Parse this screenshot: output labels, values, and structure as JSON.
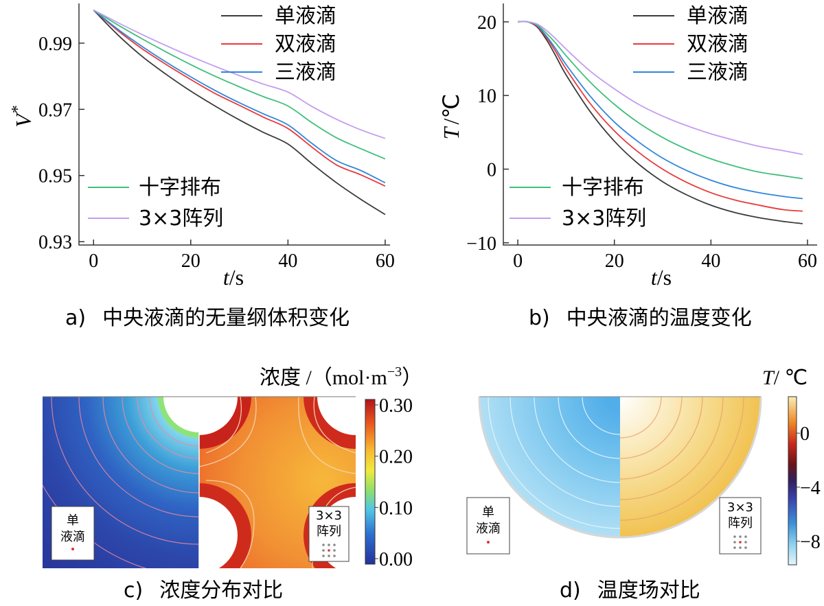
{
  "chart_data": [
    {
      "id": "a",
      "type": "line",
      "caption_label": "a)",
      "caption_text": "中央液滴的无量纲体积变化",
      "ylabel": "V*",
      "ylabel_main": "V",
      "ylabel_sup": "*",
      "xlabel_var": "t",
      "xlabel_unit": "/s",
      "xlim": [
        -3,
        61
      ],
      "ylim": [
        0.929,
        1.002
      ],
      "xticks": [
        0,
        20,
        40,
        60
      ],
      "yticks": [
        0.93,
        0.95,
        0.97,
        0.99
      ],
      "ytick_labels": [
        "0.93",
        "0.95",
        "0.97",
        "0.99"
      ],
      "x": [
        0,
        5,
        10,
        15,
        20,
        25,
        30,
        35,
        40,
        45,
        50,
        55,
        60
      ],
      "series": [
        {
          "name": "单液滴",
          "color": "#3a3a3a",
          "values": [
            1.0,
            0.9925,
            0.986,
            0.9805,
            0.9755,
            0.971,
            0.9668,
            0.963,
            0.9595,
            0.9535,
            0.9478,
            0.9428,
            0.9382
          ]
        },
        {
          "name": "双液滴",
          "color": "#e8393a",
          "values": [
            1.0,
            0.9938,
            0.9883,
            0.9835,
            0.979,
            0.9748,
            0.9712,
            0.9676,
            0.9642,
            0.9585,
            0.9532,
            0.9502,
            0.9468
          ]
        },
        {
          "name": "三液滴",
          "color": "#2f86d9",
          "values": [
            1.0,
            0.9942,
            0.989,
            0.9842,
            0.9798,
            0.9757,
            0.972,
            0.9686,
            0.9653,
            0.9596,
            0.9545,
            0.9515,
            0.9478
          ]
        },
        {
          "name": "十字排布",
          "color": "#3fbf7a",
          "values": [
            1.0,
            0.9955,
            0.9913,
            0.9873,
            0.9835,
            0.98,
            0.9768,
            0.9738,
            0.971,
            0.9659,
            0.9614,
            0.9581,
            0.955
          ]
        },
        {
          "name": "3×3阵列",
          "color": "#c39cf0",
          "values": [
            1.0,
            0.9962,
            0.9926,
            0.9892,
            0.986,
            0.983,
            0.9802,
            0.9776,
            0.9752,
            0.9708,
            0.967,
            0.9638,
            0.9612
          ]
        }
      ]
    },
    {
      "id": "b",
      "type": "line",
      "caption_label": "b)",
      "caption_text": "中央液滴的温度变化",
      "ylabel": "T /℃",
      "ylabel_main": "T",
      "ylabel_unit": "/℃",
      "xlabel_var": "t",
      "xlabel_unit": "/s",
      "xlim": [
        -3,
        62
      ],
      "ylim": [
        -10.3,
        22.5
      ],
      "xticks": [
        0,
        20,
        40,
        60
      ],
      "yticks": [
        -10,
        0,
        10,
        20
      ],
      "ytick_labels": [
        "−10",
        "0",
        "10",
        "20"
      ],
      "x": [
        0,
        2,
        4,
        6,
        8,
        10,
        15,
        20,
        25,
        30,
        35,
        40,
        45,
        50,
        55,
        59
      ],
      "series": [
        {
          "name": "单液滴",
          "color": "#3a3a3a",
          "values": [
            20,
            20,
            19.3,
            17.5,
            15.2,
            12.8,
            7.8,
            3.8,
            0.7,
            -1.7,
            -3.5,
            -4.9,
            -5.9,
            -6.6,
            -7.1,
            -7.4
          ]
        },
        {
          "name": "双液滴",
          "color": "#e8393a",
          "values": [
            20,
            20,
            19.4,
            17.8,
            15.8,
            13.6,
            8.9,
            5.2,
            2.3,
            0.0,
            -1.8,
            -3.2,
            -4.2,
            -4.9,
            -5.5,
            -5.7
          ]
        },
        {
          "name": "三液滴",
          "color": "#2f86d9",
          "values": [
            20,
            20,
            19.5,
            18.0,
            16.2,
            14.2,
            9.9,
            6.4,
            3.7,
            1.5,
            -0.2,
            -1.5,
            -2.5,
            -3.2,
            -3.7,
            -4.0
          ]
        },
        {
          "name": "十字排布",
          "color": "#3fbf7a",
          "values": [
            20,
            20,
            19.6,
            18.4,
            17.0,
            15.4,
            11.8,
            8.8,
            6.3,
            4.3,
            2.7,
            1.4,
            0.4,
            -0.4,
            -0.9,
            -1.3
          ]
        },
        {
          "name": "3×3阵列",
          "color": "#c39cf0",
          "values": [
            20,
            20,
            19.7,
            18.8,
            17.6,
            16.3,
            13.3,
            10.9,
            8.8,
            7.2,
            5.9,
            4.8,
            3.9,
            3.1,
            2.5,
            2.0
          ]
        }
      ]
    },
    {
      "id": "c",
      "type": "heatmap",
      "caption_label": "c)",
      "caption_text": "浓度分布对比",
      "colorbar_title": "浓度 /（mol·m",
      "colorbar_title_sup": "−3",
      "colorbar_title_end": "）",
      "colorbar_range": [
        0.0,
        0.3
      ],
      "colorbar_ticks": [
        0.0,
        0.1,
        0.2,
        0.3
      ],
      "colorbar_tick_labels": [
        "0.00",
        "0.10",
        "0.20",
        "0.30"
      ],
      "left_label_line1": "单",
      "left_label_line2": "液滴",
      "right_label_line1": "3×3",
      "right_label_line2": "阵列"
    },
    {
      "id": "d",
      "type": "heatmap",
      "caption_label": "d)",
      "caption_text": "温度场对比",
      "colorbar_title": "T/ ℃",
      "colorbar_title_main": "T",
      "colorbar_title_unit": "/ ℃",
      "colorbar_range": [
        -9.5,
        2.5
      ],
      "colorbar_ticks": [
        0,
        -4,
        -8
      ],
      "colorbar_tick_labels": [
        "0",
        "−4",
        "−8"
      ],
      "left_label_line1": "单",
      "left_label_line2": "液滴",
      "right_label_line1": "3×3",
      "right_label_line2": "阵列"
    }
  ],
  "colors": {
    "conc_low": "#2a3da0",
    "conc_high": "#c81f14",
    "temp_cold": "#7fc9ef",
    "temp_warm": "#f2c34e"
  }
}
